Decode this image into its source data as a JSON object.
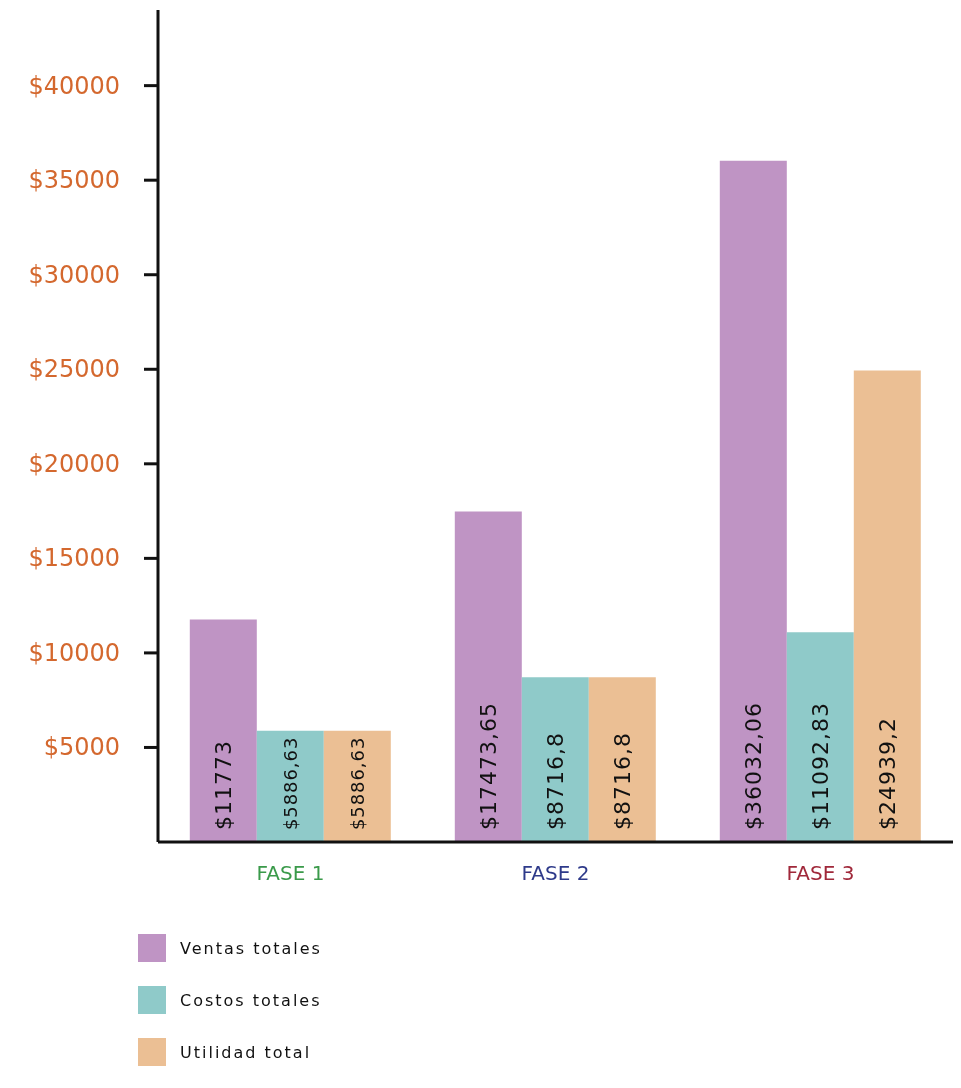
{
  "chart_data": {
    "type": "bar",
    "categories": [
      "FASE 1",
      "FASE 2",
      "FASE 3"
    ],
    "series": [
      {
        "name": "Ventas totales",
        "color": "#bf94c4",
        "values": [
          11773,
          17473.65,
          36032.06
        ],
        "value_labels": [
          "$11773",
          "$17473,65",
          "$36032,06"
        ]
      },
      {
        "name": "Costos totales",
        "color": "#8fcac9",
        "values": [
          5886.63,
          8716.8,
          11092.83
        ],
        "value_labels": [
          "$5886,63",
          "$8716,8",
          "$11092,83"
        ]
      },
      {
        "name": "Utilidad total",
        "color": "#ebbf94",
        "values": [
          5886.63,
          8716.8,
          24939.2
        ],
        "value_labels": [
          "$5886,63",
          "$8716,8",
          "$24939,2"
        ]
      }
    ],
    "ylim": [
      0,
      44000
    ],
    "yticks": [
      {
        "value": 5000,
        "label": "$5000"
      },
      {
        "value": 10000,
        "label": "$10000"
      },
      {
        "value": 15000,
        "label": "$15000"
      },
      {
        "value": 20000,
        "label": "$20000"
      },
      {
        "value": 25000,
        "label": "$25000"
      },
      {
        "value": 30000,
        "label": "$30000"
      },
      {
        "value": 35000,
        "label": "$35000"
      },
      {
        "value": 40000,
        "label": "$40000"
      }
    ],
    "grid": false,
    "legend": "bottom left"
  }
}
